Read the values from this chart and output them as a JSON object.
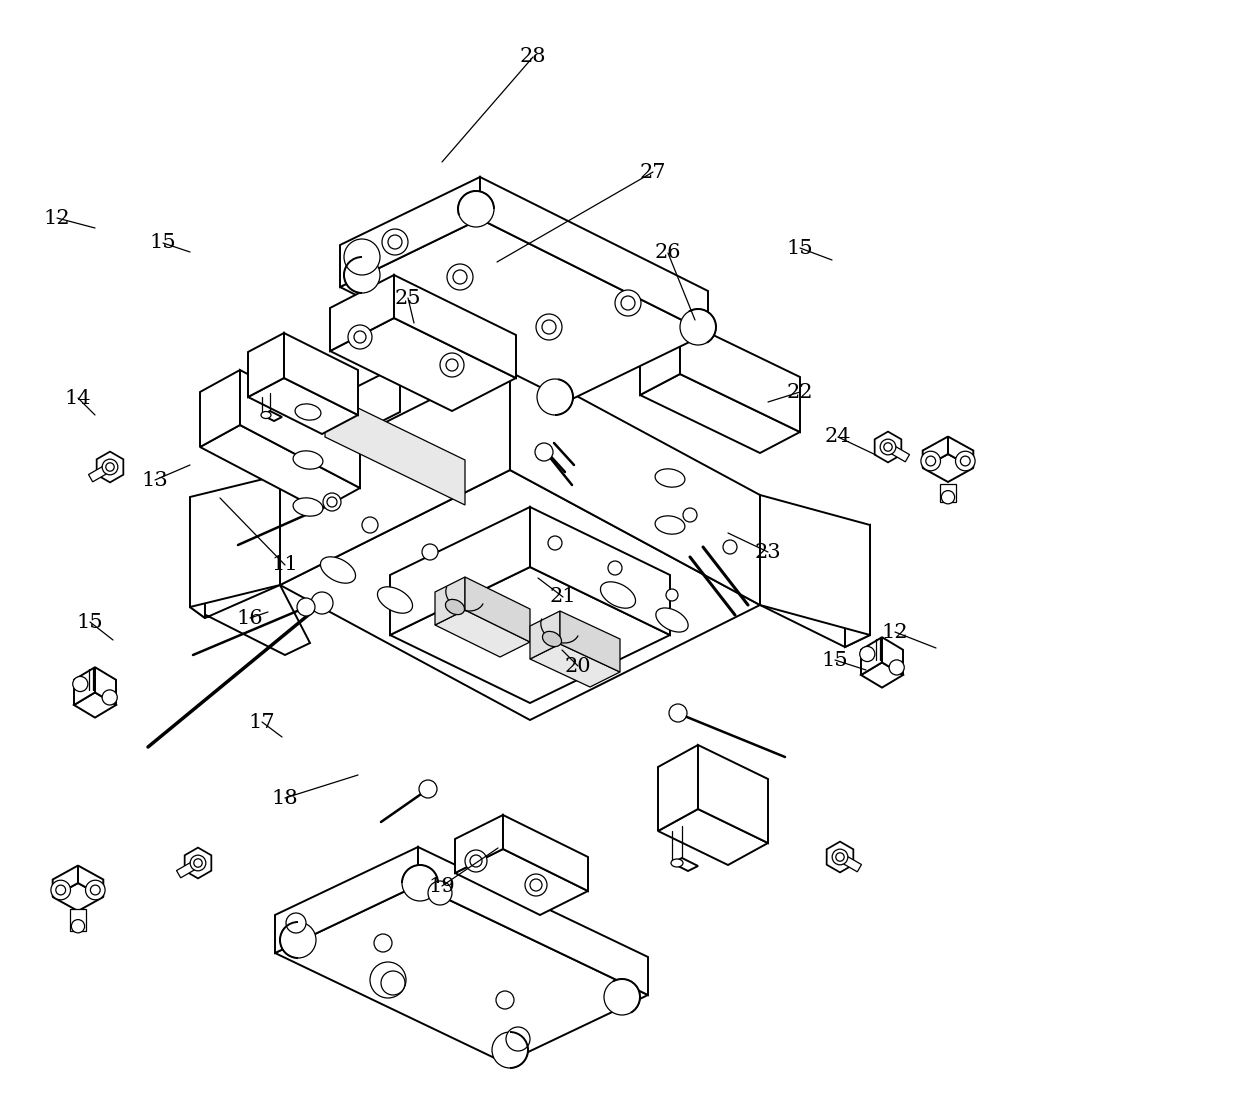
{
  "bg_color": "#ffffff",
  "lc": "#000000",
  "lw": 1.4,
  "tlw": 0.9,
  "figure_width": 12.4,
  "figure_height": 11.15,
  "dpi": 100
}
